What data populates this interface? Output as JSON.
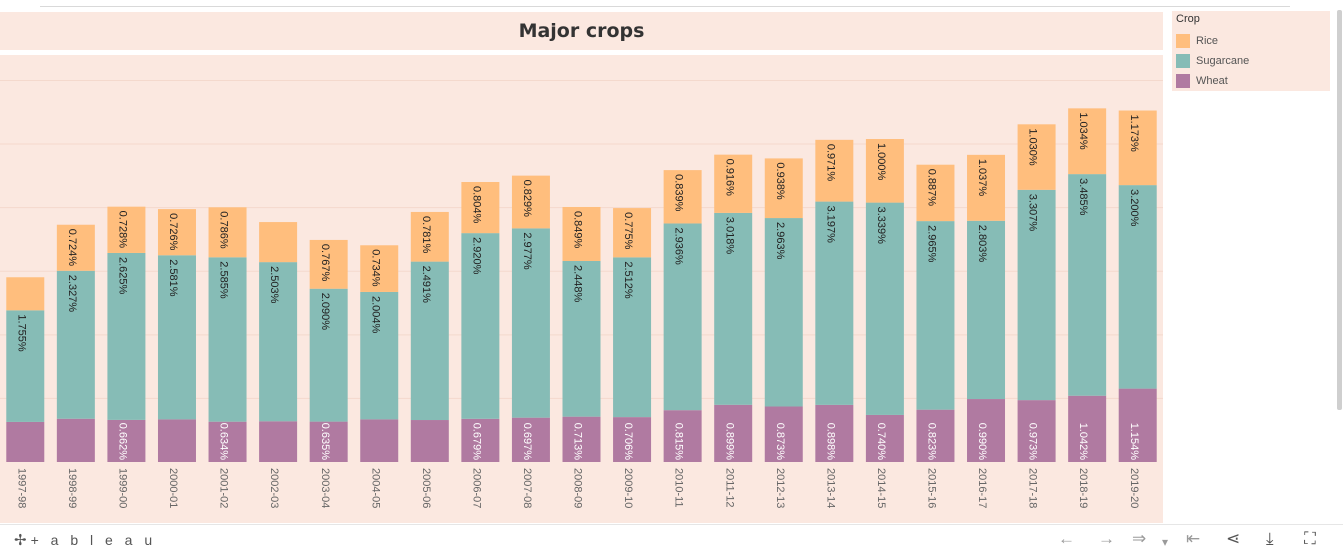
{
  "title": "Major crops",
  "legend": {
    "title": "Crop",
    "items": [
      {
        "label": "Rice",
        "color": "#ffbe7d"
      },
      {
        "label": "Sugarcane",
        "color": "#86bcb6"
      },
      {
        "label": "Wheat",
        "color": "#b07aa1"
      }
    ]
  },
  "chart_data": {
    "type": "bar",
    "stacked": true,
    "categories": [
      "1997-98",
      "1998-99",
      "1999-00",
      "2000-01",
      "2001-02",
      "2002-03",
      "2003-04",
      "2004-05",
      "2005-06",
      "2006-07",
      "2007-08",
      "2008-09",
      "2009-10",
      "2010-11",
      "2011-12",
      "2012-13",
      "2013-14",
      "2014-15",
      "2015-16",
      "2016-17",
      "2017-18",
      "2018-19",
      "2019-20"
    ],
    "ylim": [
      0,
      6.4
    ],
    "grid": true,
    "legend_placement": "right",
    "series": [
      {
        "name": "Wheat",
        "color": "#b07aa1",
        "values": [
          0.63,
          0.68,
          0.662,
          0.67,
          0.634,
          0.64,
          0.635,
          0.67,
          0.66,
          0.679,
          0.697,
          0.713,
          0.706,
          0.815,
          0.899,
          0.873,
          0.898,
          0.74,
          0.823,
          0.99,
          0.973,
          1.042,
          1.154
        ],
        "labels": [
          "",
          "",
          "0.662%",
          "",
          "0.634%",
          "",
          "0.635%",
          "",
          "",
          "0.679%",
          "0.697%",
          "0.713%",
          "0.706%",
          "0.815%",
          "0.899%",
          "0.873%",
          "0.898%",
          "0.740%",
          "0.823%",
          "0.990%",
          "0.973%",
          "1.042%",
          "1.154%"
        ]
      },
      {
        "name": "Sugarcane",
        "color": "#86bcb6",
        "values": [
          1.755,
          2.327,
          2.625,
          2.581,
          2.585,
          2.503,
          2.09,
          2.004,
          2.491,
          2.92,
          2.977,
          2.448,
          2.512,
          2.936,
          3.018,
          2.963,
          3.197,
          3.339,
          2.965,
          2.803,
          3.307,
          3.485,
          3.2
        ],
        "labels": [
          "1.755%",
          "2.327%",
          "2.625%",
          "2.581%",
          "2.585%",
          "2.503%",
          "2.090%",
          "2.004%",
          "2.491%",
          "2.920%",
          "2.977%",
          "2.448%",
          "2.512%",
          "2.936%",
          "3.018%",
          "2.963%",
          "3.197%",
          "3.339%",
          "2.965%",
          "2.803%",
          "3.307%",
          "3.485%",
          "3.200%"
        ]
      },
      {
        "name": "Rice",
        "color": "#ffbe7d",
        "values": [
          0.52,
          0.724,
          0.728,
          0.726,
          0.786,
          0.63,
          0.767,
          0.734,
          0.781,
          0.804,
          0.829,
          0.849,
          0.775,
          0.839,
          0.916,
          0.938,
          0.971,
          1.0,
          0.887,
          1.037,
          1.03,
          1.034,
          1.173
        ],
        "labels": [
          "",
          "0.724%",
          "0.728%",
          "0.726%",
          "0.786%",
          "",
          "0.767%",
          "0.734%",
          "0.781%",
          "0.804%",
          "0.829%",
          "0.849%",
          "0.775%",
          "0.839%",
          "0.916%",
          "0.938%",
          "0.971%",
          "1.000%",
          "0.887%",
          "1.037%",
          "1.030%",
          "1.034%",
          "1.173%"
        ]
      }
    ]
  },
  "footer": {
    "brand_icon": "tableau-logo-icon",
    "brand_text": "+ a b l e a u",
    "undo": "←",
    "redo": "→",
    "revert": "⇒",
    "revert_menu": "▾",
    "reset": "⇤",
    "share": "⋖",
    "download": "⤓",
    "fullscreen": "⛶"
  }
}
